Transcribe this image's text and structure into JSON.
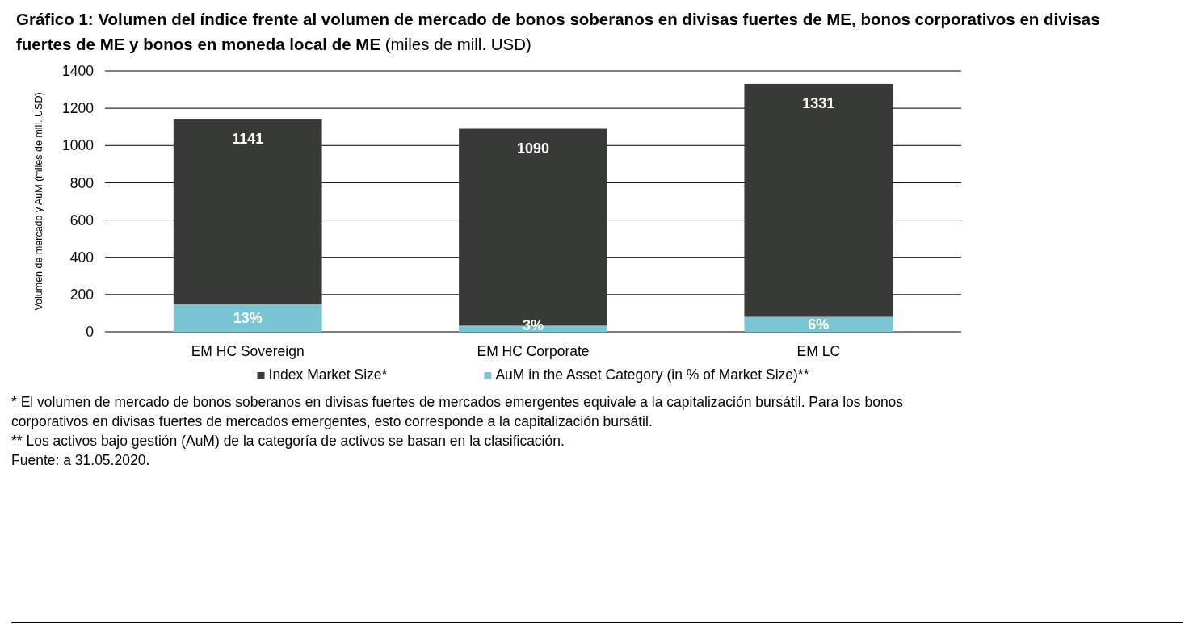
{
  "chart_data": {
    "type": "bar",
    "title": "Gráfico 1: Volumen del índice frente al volumen de mercado de bonos soberanos en divisas fuertes de ME, bonos corporativos en divisas fuertes de ME y bonos en moneda local de ME",
    "subtitle": "(miles de mill. USD)",
    "ylabel": "Volumen de mercado y AuM (miles de mill. USD)",
    "categories": [
      "EM HC Sovereign",
      "EM HC Corporate",
      "EM LC"
    ],
    "stacked": true,
    "series": [
      {
        "name": "AuM in the Asset Category (in % of Market Size)**",
        "color": "#7ac5d2",
        "values": [
          148,
          33,
          80
        ]
      },
      {
        "name": "Index Market Size*",
        "color": "#383a37",
        "values": [
          993,
          1057,
          1251
        ]
      }
    ],
    "ylim": [
      0,
      1400
    ],
    "yticks": [
      0,
      200,
      400,
      600,
      800,
      1000,
      1200,
      1400
    ],
    "grid": "y",
    "legend": "bottom",
    "annotations": [
      {
        "text": "1141",
        "x": "EM HC Sovereign",
        "y": 1141
      },
      {
        "text": "1090",
        "x": "EM HC Corporate",
        "y": 1090
      },
      {
        "text": "1331",
        "x": "EM LC",
        "y": 1331
      },
      {
        "text": "13%",
        "x": "EM HC Sovereign",
        "y": 148
      },
      {
        "text": "3%",
        "x": "EM HC Corporate",
        "y": 33
      },
      {
        "text": "6%",
        "x": "EM LC",
        "y": 80
      },
      "* El volumen de mercado de bonos soberanos en divisas fuertes de mercados emergentes equivale a la capitalización bursátil. Para los bonos corporativos en divisas fuertes de mercados emergentes, esto corresponde a la capitalización bursátil.",
      "** Los activos bajo gestión (AuM) de la categoría de activos se basan en la clasificación.",
      "Fuente: a 31.05.2020."
    ]
  }
}
